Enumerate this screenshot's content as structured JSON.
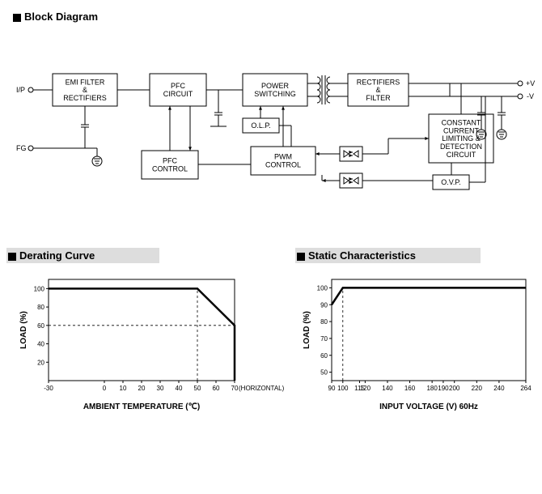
{
  "titles": {
    "block_diagram": "Block Diagram",
    "derating_curve": "Derating Curve",
    "static_characteristics": "Static Characteristics"
  },
  "block_diagram": {
    "nodes": {
      "emi": "EMI FILTER\n&\nRECTIFIERS",
      "pfc_circuit": "PFC\nCIRCUIT",
      "power_switching": "POWER\nSWITCHING",
      "rect_filter": "RECTIFIERS\n&\nFILTER",
      "olp": "O.L.P.",
      "pfc_control": "PFC\nCONTROL",
      "pwm_control": "PWM\nCONTROL",
      "cc_limiting": "CONSTANT\nCURRENT\nLIMITING &\nDETECTION\nCIRCUIT",
      "ovp": "O.V.P."
    },
    "labels": {
      "ip": "I/P",
      "fg": "FG",
      "pv": "+V",
      "nv": "-V"
    },
    "font_size": 9,
    "box_stroke": "#000",
    "box_fill": "#fff",
    "line_stroke": "#000"
  },
  "derating_chart": {
    "type": "line",
    "title_y": "LOAD (%)",
    "title_x": "AMBIENT TEMPERATURE (℃)",
    "x_ticks": [
      -30,
      0,
      10,
      20,
      30,
      40,
      50,
      60,
      70
    ],
    "x_extra_label": "(HORIZONTAL)",
    "y_ticks": [
      20,
      40,
      60,
      80,
      100
    ],
    "xlim": [
      -30,
      70
    ],
    "ylim": [
      0,
      110
    ],
    "line_points": [
      [
        -30,
        100
      ],
      [
        50,
        100
      ],
      [
        70,
        60
      ],
      [
        70,
        0
      ]
    ],
    "dash_guides": [
      [
        [
          -30,
          60
        ],
        [
          70,
          60
        ]
      ],
      [
        [
          50,
          0
        ],
        [
          50,
          100
        ]
      ]
    ],
    "line_color": "#000",
    "line_width": 2.5,
    "tick_fontsize": 8,
    "label_fontsize": 10,
    "bg": "#fff"
  },
  "static_chart": {
    "type": "line",
    "title_y": "LOAD (%)",
    "title_x": "INPUT VOLTAGE (V) 60Hz",
    "x_ticks": [
      90,
      100,
      115,
      120,
      140,
      160,
      180,
      190,
      200,
      220,
      240,
      264
    ],
    "y_ticks": [
      50,
      60,
      70,
      80,
      90,
      100
    ],
    "xlim": [
      90,
      264
    ],
    "ylim": [
      45,
      105
    ],
    "line_points": [
      [
        90,
        90
      ],
      [
        100,
        100
      ],
      [
        264,
        100
      ]
    ],
    "dash_guides": [
      [
        [
          100,
          45
        ],
        [
          100,
          100
        ]
      ]
    ],
    "line_color": "#000",
    "line_width": 2.5,
    "tick_fontsize": 8,
    "label_fontsize": 10,
    "bg": "#fff"
  }
}
